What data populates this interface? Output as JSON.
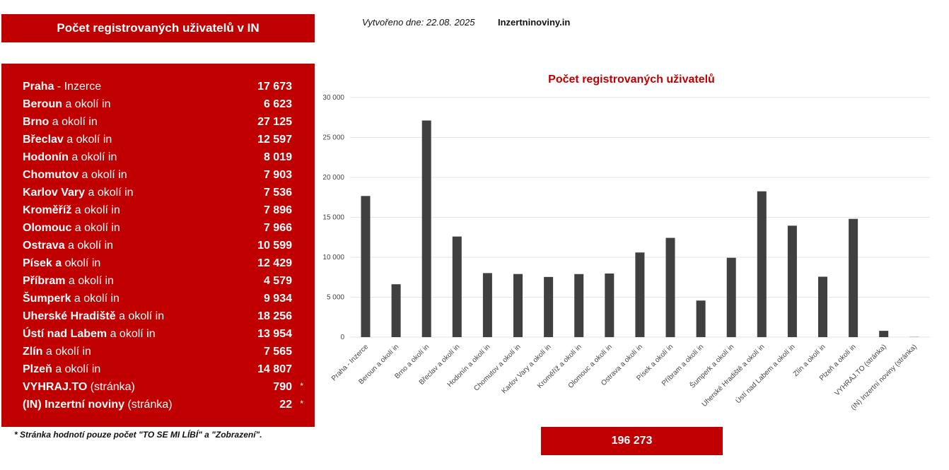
{
  "header": {
    "title": "Počet registrovaných uživatelů v IN",
    "created": "Vytvořeno dne: 22.08. 2025",
    "site": "Inzertninoviny.in"
  },
  "list": [
    {
      "bold": "Praha",
      "rest": " - Inzerce",
      "value": "17 673",
      "star": ""
    },
    {
      "bold": "Beroun",
      "rest": " a okolí in",
      "value": "6 623",
      "star": ""
    },
    {
      "bold": "Brno",
      "rest": " a okolí in",
      "value": "27 125",
      "star": ""
    },
    {
      "bold": "Břeclav",
      "rest": " a okolí in",
      "value": "12 597",
      "star": ""
    },
    {
      "bold": "Hodonín",
      "rest": " a okolí in",
      "value": "8 019",
      "star": ""
    },
    {
      "bold": "Chomutov",
      "rest": " a okolí in",
      "value": "7 903",
      "star": ""
    },
    {
      "bold": "Karlov Vary",
      "rest": " a okolí in",
      "value": "7 536",
      "star": ""
    },
    {
      "bold": "Kroměříž",
      "rest": " a okolí in",
      "value": "7 896",
      "star": ""
    },
    {
      "bold": "Olomouc",
      "rest": " a okolí in",
      "value": "7 966",
      "star": ""
    },
    {
      "bold": "Ostrava",
      "rest": " a okolí in",
      "value": "10 599",
      "star": ""
    },
    {
      "bold": "Písek a",
      "rest": " okolí in",
      "value": "12 429",
      "star": ""
    },
    {
      "bold": "Příbram",
      "rest": " a okolí in",
      "value": "4 579",
      "star": ""
    },
    {
      "bold": "Šumperk",
      "rest": " a okolí in",
      "value": "9 934",
      "star": ""
    },
    {
      "bold": "Uherské Hradiště",
      "rest": " a okolí in",
      "value": "18 256",
      "star": ""
    },
    {
      "bold": "Ústí nad Labem",
      "rest": " a okolí in",
      "value": "13 954",
      "star": ""
    },
    {
      "bold": "Zlín",
      "rest": " a okolí in",
      "value": "7 565",
      "star": ""
    },
    {
      "bold": "Plzeň",
      "rest": " a okolí in",
      "value": "14 807",
      "star": ""
    },
    {
      "bold": "VYHRAJ.TO",
      "rest": " (stránka)",
      "value": "790",
      "star": "*"
    },
    {
      "bold": "(IN) Inzertní noviny",
      "rest": " (stránka)",
      "value": "22",
      "star": "*"
    }
  ],
  "footnote": "*  Stránka hodnotí pouze počet \"TO SE MI LÍBÍ\" a \"Zobrazení\".",
  "total": "196 273",
  "colors": {
    "accent": "#c00000",
    "bar": "#404040"
  },
  "chart_data": {
    "type": "bar",
    "title": "Počet registrovaných uživatelů",
    "xlabel": "",
    "ylabel": "",
    "ylim": [
      0,
      30000
    ],
    "yticks": [
      0,
      5000,
      10000,
      15000,
      20000,
      25000,
      30000
    ],
    "ytick_labels": [
      "0",
      "5 000",
      "10 000",
      "15 000",
      "20 000",
      "25 000",
      "30 000"
    ],
    "grid": true,
    "categories": [
      "Praha - Inzerce",
      "Beroun a okolí in",
      "Brno a okolí in",
      "Břeclav a okolí in",
      "Hodonín a okolí in",
      "Chomutov a okolí in",
      "Karlov Vary a okolí in",
      "Kroměříž a okolí in",
      "Olomouc a okolí in",
      "Ostrava a okolí in",
      "Písek a okolí in",
      "Příbram a okolí in",
      "Šumperk a okolí in",
      "Uherské Hradiště a okolí in",
      "Ústí nad Labem a okolí in",
      "Zlín a okolí in",
      "Plzeň a okolí in",
      "VYHRAJ.TO (stránka)",
      "(IN) Inzertní noviny (stránka)"
    ],
    "values": [
      17673,
      6623,
      27125,
      12597,
      8019,
      7903,
      7536,
      7896,
      7966,
      10599,
      12429,
      4579,
      9934,
      18256,
      13954,
      7565,
      14807,
      790,
      22
    ]
  }
}
